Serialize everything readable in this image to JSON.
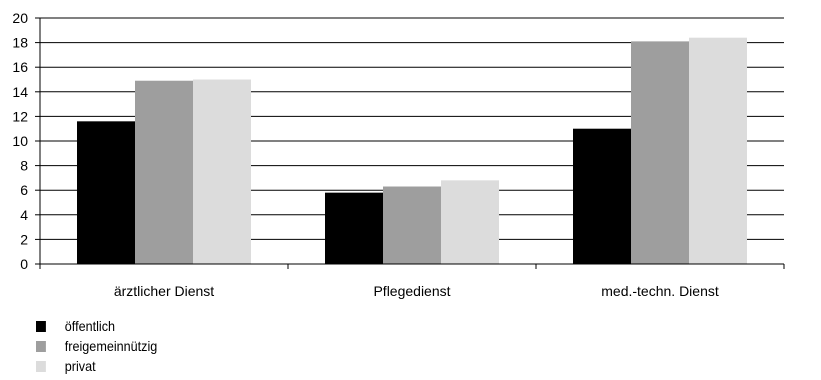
{
  "chart_data": {
    "type": "bar",
    "title": "",
    "xlabel": "",
    "ylabel": "",
    "categories": [
      "ärztlicher Dienst",
      "Pflegedienst",
      "med.-techn. Dienst"
    ],
    "series": [
      {
        "name": "öffentlich",
        "color": "#000000",
        "values": [
          11.6,
          5.8,
          11.0
        ]
      },
      {
        "name": "freigemeinnützig",
        "color": "#9e9e9e",
        "values": [
          14.9,
          6.3,
          18.1
        ]
      },
      {
        "name": "privat",
        "color": "#dcdcdc",
        "values": [
          15.0,
          6.8,
          18.4
        ]
      }
    ],
    "ylim": [
      0,
      20
    ],
    "yticks": [
      0,
      2,
      4,
      6,
      8,
      10,
      12,
      14,
      16,
      18,
      20
    ],
    "grid": true,
    "legend_position": "bottom-left"
  }
}
